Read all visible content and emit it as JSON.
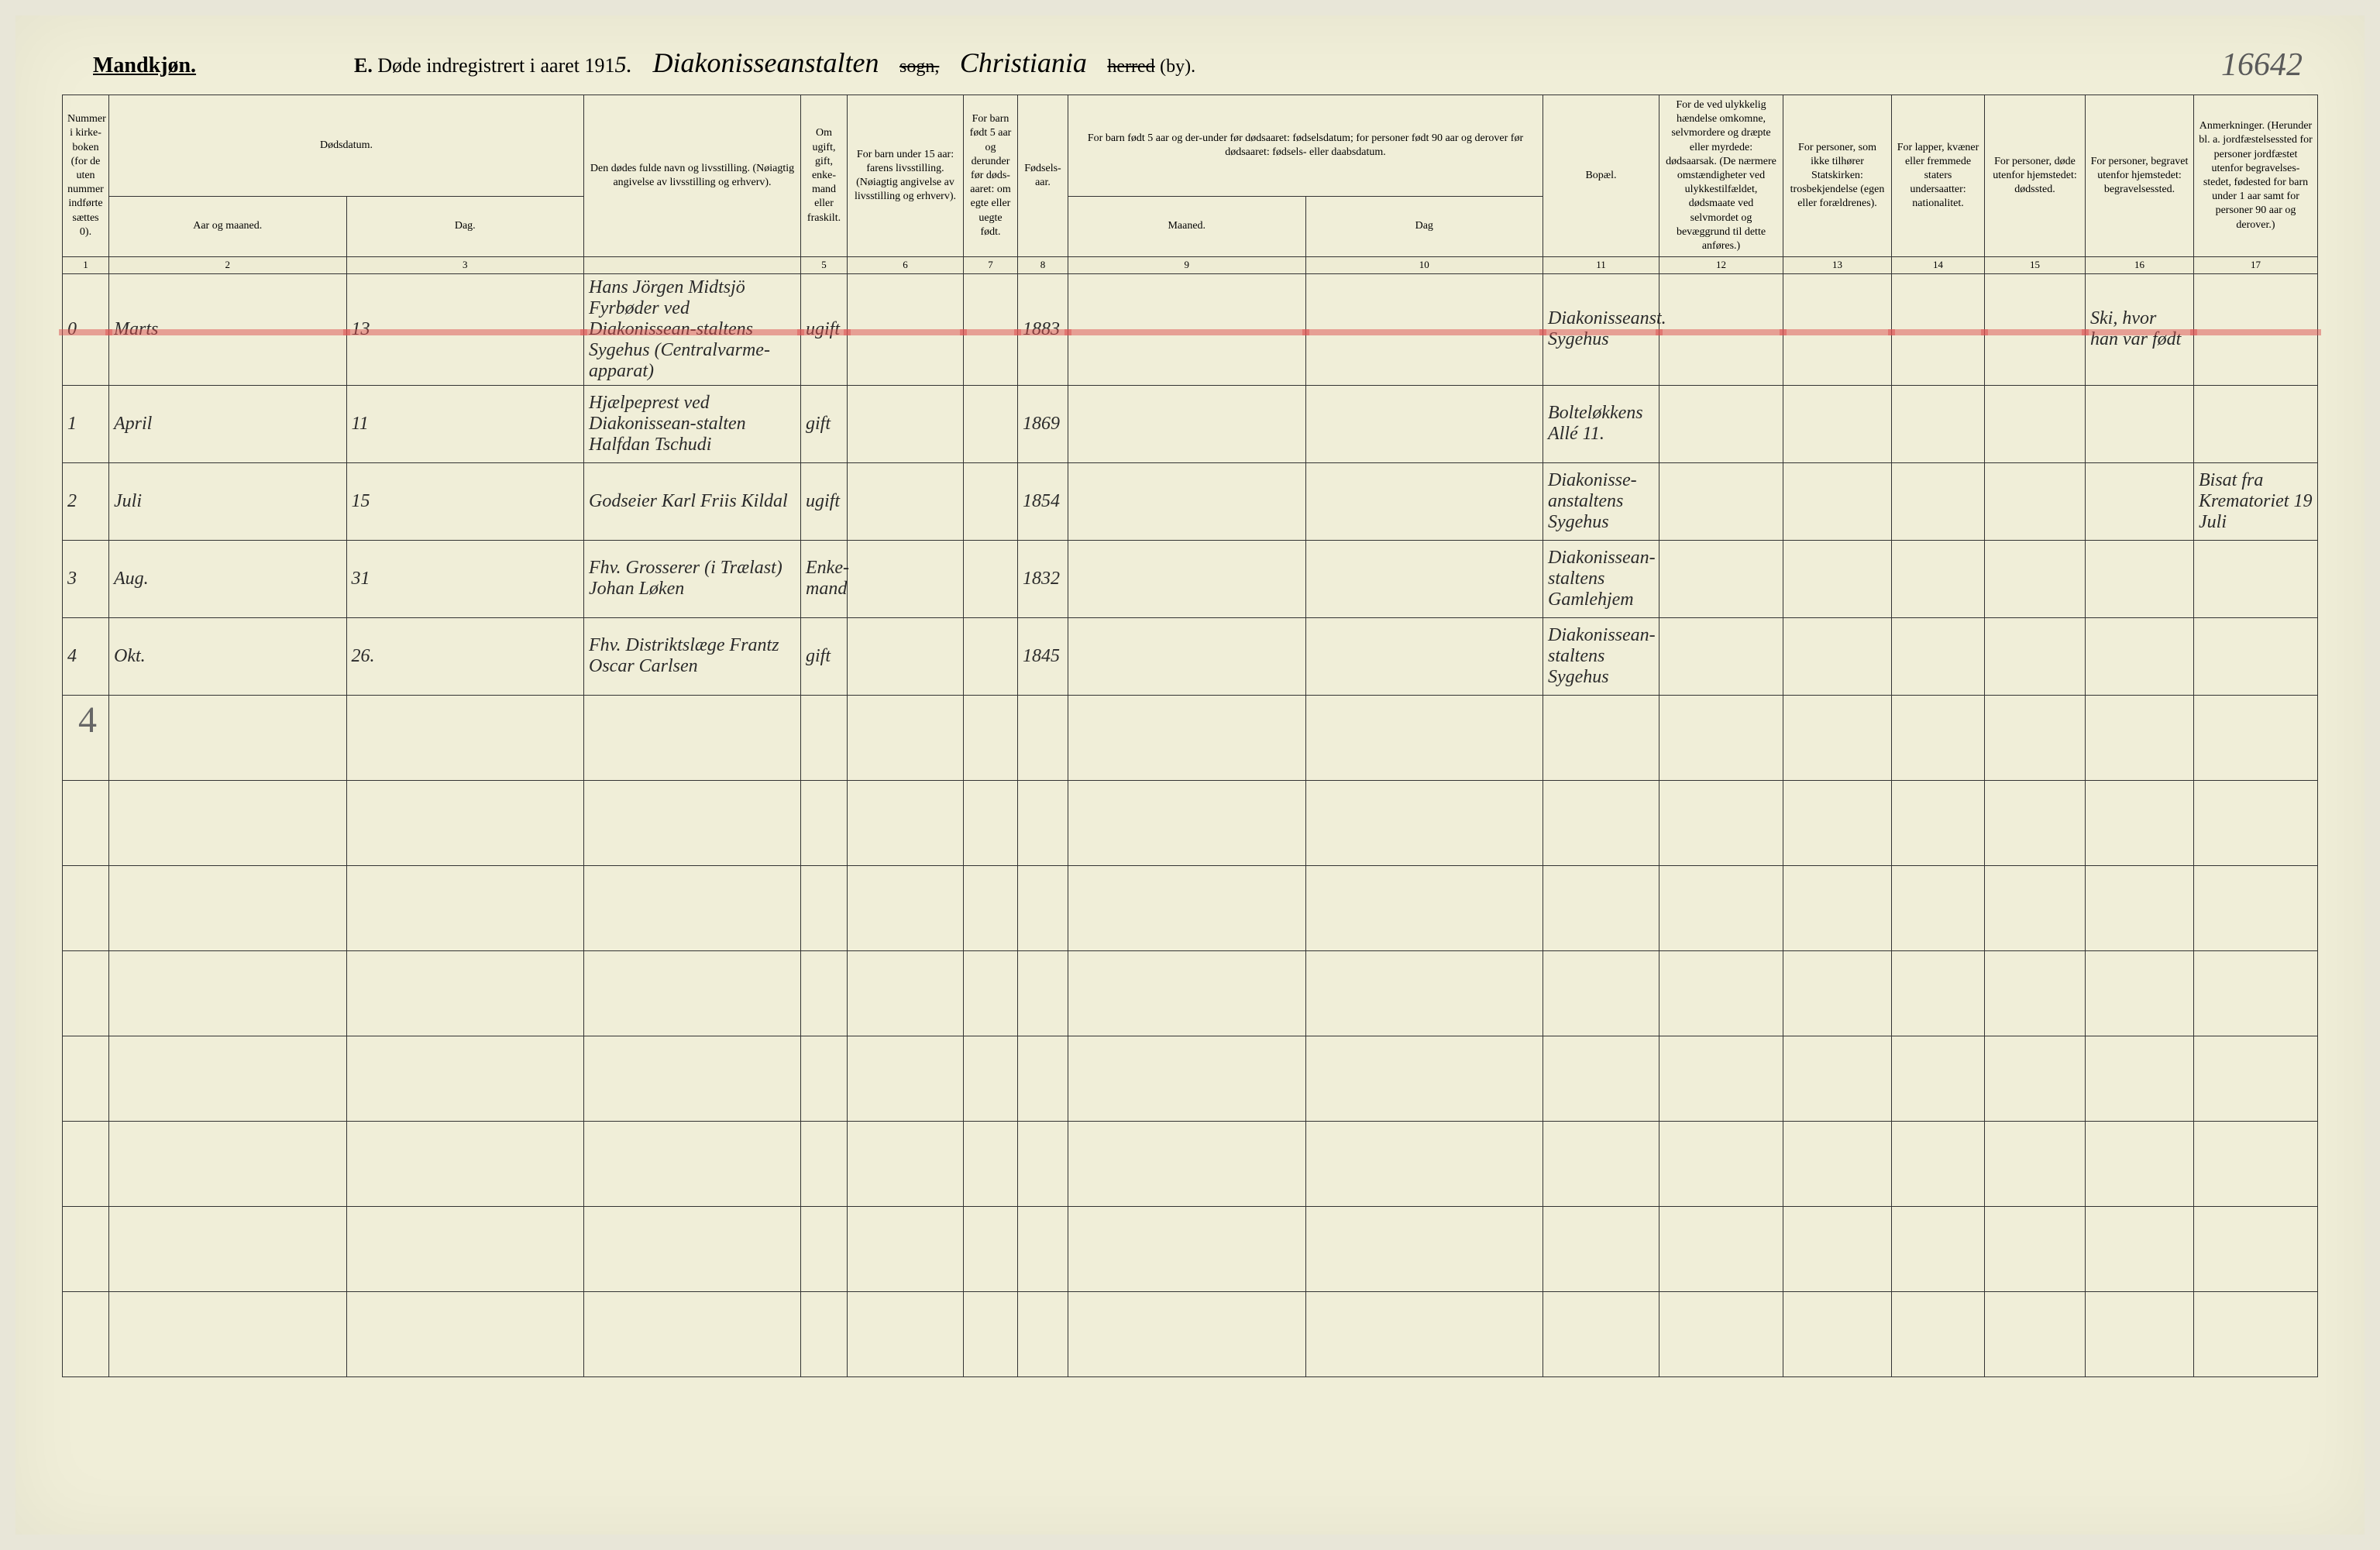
{
  "page_number": "16642",
  "header": {
    "gender": "Mandkjøn.",
    "title_letter": "E.",
    "title_text": "Døde indregistrert i aaret 191",
    "year_suffix": "5.",
    "sogn_name": "Diakonisseanstalten",
    "sogn_label": "sogn,",
    "city": "Christiania",
    "herred_struck": "herred",
    "by_label": "(by)."
  },
  "columns": {
    "c1": "Nummer i kirke-boken (for de uten nummer indførte sættes 0).",
    "c2_top": "Dødsdatum.",
    "c2a": "Aar og maaned.",
    "c2b": "Dag.",
    "c3": "Den dødes fulde navn og livsstilling. (Nøiagtig angivelse av livsstilling og erhverv).",
    "c4": "Om ugift, gift, enke-mand eller fraskilt.",
    "c5": "For barn under 15 aar: farens livsstilling. (Nøiagtig angivelse av livsstilling og erhverv).",
    "c6": "For barn født 5 aar og derunder før døds-aaret: om egte eller uegte født.",
    "c7": "Fødsels-aar.",
    "c8_top": "For barn født 5 aar og der-under før dødsaaret: fødselsdatum; for personer født 90 aar og derover før dødsaaret: fødsels- eller daabsdatum.",
    "c8a": "Maaned.",
    "c8b": "Dag",
    "c9": "Bopæl.",
    "c10": "For de ved ulykkelig hændelse omkomne, selvmordere og dræpte eller myrdede: dødsaarsak. (De nærmere omstændigheter ved ulykkestilfældet, dødsmaate ved selvmordet og bevæggrund til dette anføres.)",
    "c11": "For personer, som ikke tilhører Statskirken: trosbekjendelse (egen eller forældrenes).",
    "c12": "For lapper, kvæner eller fremmede staters undersaatter: nationalitet.",
    "c13": "For personer, døde utenfor hjemstedet: dødssted.",
    "c14": "For personer, begravet utenfor hjemstedet: begravelsessted.",
    "c15": "Anmerkninger. (Herunder bl. a. jordfæstelsessted for personer jordfæstet utenfor begravelses-stedet, fødested for barn under 1 aar samt for personer 90 aar og derover.)"
  },
  "col_nums": [
    "1",
    "2",
    "3",
    "",
    "5",
    "6",
    "7",
    "8",
    "9",
    "10",
    "11",
    "12",
    "13",
    "14",
    "15",
    "16",
    "17"
  ],
  "rows": [
    {
      "num": "0",
      "month": "Marts",
      "day": "13",
      "name": "Hans Jörgen Midtsjö Fyrbøder ved Diakonissean-staltens Sygehus (Centralvarme-apparat)",
      "marital": "ugift",
      "father": "",
      "legit": "",
      "birth": "1883",
      "cm": "",
      "cd": "",
      "bopael": "Diakonisseanst. Sygehus",
      "cause": "",
      "religion": "",
      "nation": "",
      "deathplace": "",
      "burial": "Ski, hvor han var født",
      "remarks": "",
      "highlighted": true
    },
    {
      "num": "1",
      "month": "April",
      "day": "11",
      "name": "Hjælpeprest ved Diakonissean-stalten Halfdan Tschudi",
      "marital": "gift",
      "father": "",
      "legit": "",
      "birth": "1869",
      "cm": "",
      "cd": "",
      "bopael": "Bolteløkkens Allé 11.",
      "cause": "",
      "religion": "",
      "nation": "",
      "deathplace": "",
      "burial": "",
      "remarks": ""
    },
    {
      "num": "2",
      "month": "Juli",
      "day": "15",
      "name": "Godseier Karl Friis Kildal",
      "marital": "ugift",
      "father": "",
      "legit": "",
      "birth": "1854",
      "cm": "",
      "cd": "",
      "bopael": "Diakonisse-anstaltens Sygehus",
      "cause": "",
      "religion": "",
      "nation": "",
      "deathplace": "",
      "burial": "",
      "remarks": "Bisat fra Krematoriet 19 Juli"
    },
    {
      "num": "3",
      "month": "Aug.",
      "day": "31",
      "name": "Fhv. Grosserer (i Trælast) Johan Løken",
      "marital": "Enke-mand",
      "father": "",
      "legit": "",
      "birth": "1832",
      "cm": "",
      "cd": "",
      "bopael": "Diakonissean-staltens Gamlehjem",
      "cause": "",
      "religion": "",
      "nation": "",
      "deathplace": "",
      "burial": "",
      "remarks": ""
    },
    {
      "num": "4",
      "month": "Okt.",
      "day": "26.",
      "name": "Fhv. Distriktslæge Frantz Oscar Carlsen",
      "marital": "gift",
      "father": "",
      "legit": "",
      "birth": "1845",
      "cm": "",
      "cd": "",
      "bopael": "Diakonissean-staltens Sygehus",
      "cause": "",
      "religion": "",
      "nation": "",
      "deathplace": "",
      "burial": "",
      "remarks": ""
    }
  ],
  "tally": "4",
  "colors": {
    "paper": "#f0eed8",
    "border": "#333333",
    "ink": "#2a2a2a",
    "red_highlight": "rgba(220,80,80,0.5)"
  },
  "empty_rows": 7
}
